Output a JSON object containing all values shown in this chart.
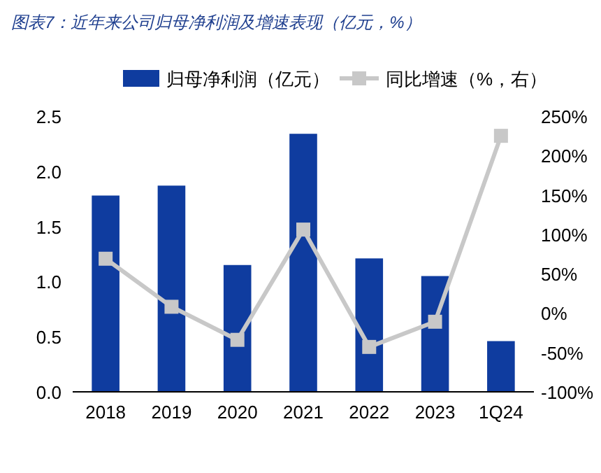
{
  "chart_data": {
    "type": "bar",
    "title": "图表7：近年来公司归母净利润及增速表现（亿元，%）",
    "categories": [
      "2018",
      "2019",
      "2020",
      "2021",
      "2022",
      "2023",
      "1Q24"
    ],
    "series": [
      {
        "name": "归母净利润（亿元）",
        "color": "#0f3c9f",
        "values": [
          1.78,
          1.87,
          1.15,
          2.34,
          1.21,
          1.05,
          0.46
        ]
      },
      {
        "name": "同比增速（%，右）",
        "type": "line",
        "axis": "y2",
        "color": "#c8c8c8",
        "marker": "square",
        "values": [
          69,
          8,
          -34,
          106,
          -43,
          -11,
          225
        ]
      }
    ],
    "ylim": [
      0,
      2.5
    ],
    "yticks": [
      {
        "value": 0,
        "label": "0.0"
      },
      0.5,
      {
        "value": 1,
        "label": "1.0"
      },
      1.5,
      {
        "value": 2,
        "label": "2.0"
      },
      2.5
    ],
    "y2lim": [
      -100,
      250
    ],
    "y2ticks": [
      {
        "value": -100,
        "label": "-100%"
      },
      {
        "value": -50,
        "label": "-50%"
      },
      {
        "value": 0,
        "label": "0%"
      },
      {
        "value": 50,
        "label": "50%"
      },
      {
        "value": 100,
        "label": "100%"
      },
      {
        "value": 150,
        "label": "150%"
      },
      {
        "value": 200,
        "label": "200%"
      },
      {
        "value": 250,
        "label": "250%"
      }
    ],
    "grid": false,
    "legend": "top"
  }
}
